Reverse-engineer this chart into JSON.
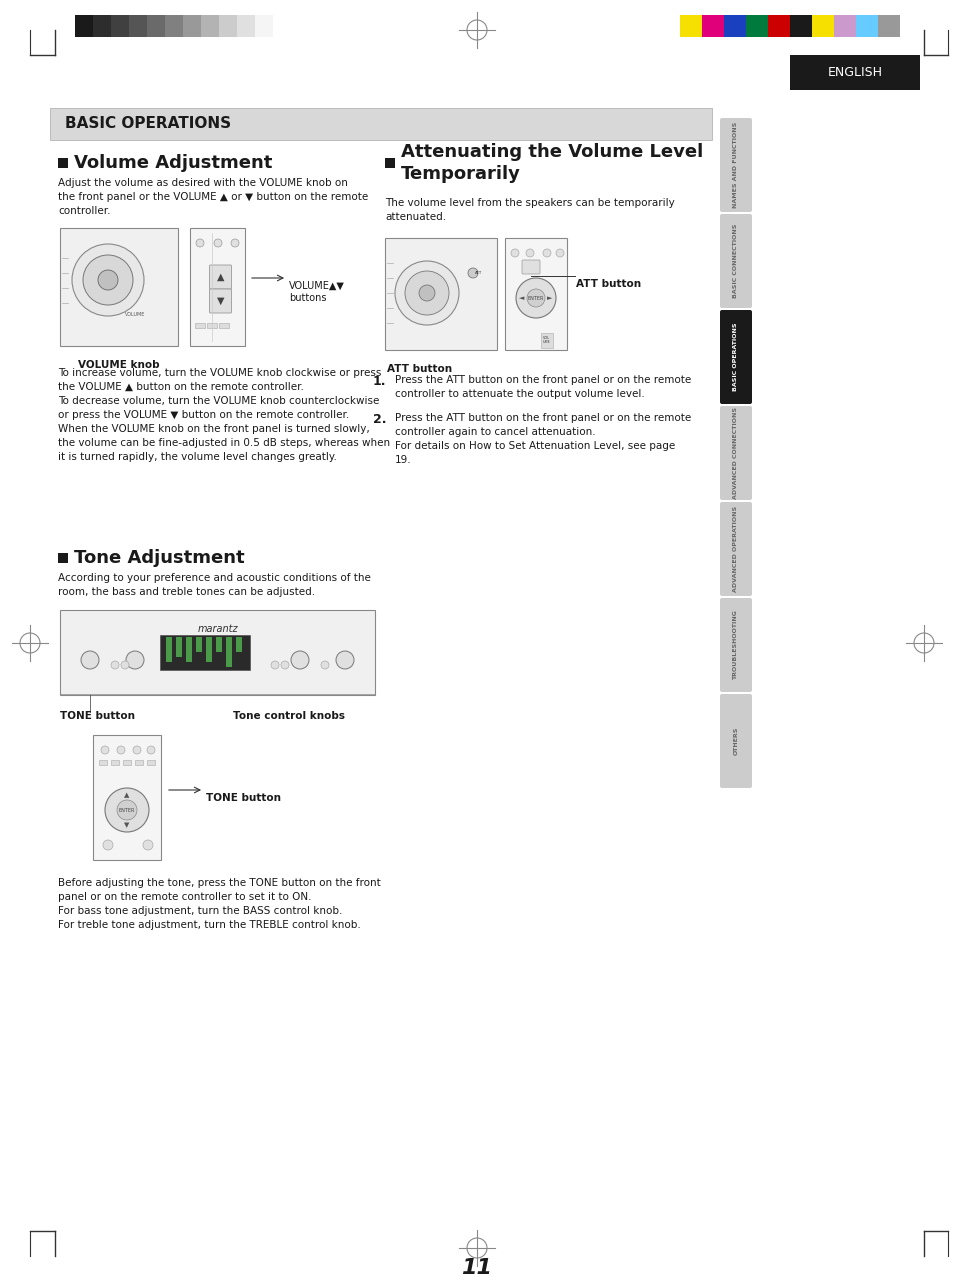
{
  "page_bg": "#ffffff",
  "header_bar_colors": [
    "#1a1a1a",
    "#2d2d2d",
    "#404040",
    "#555555",
    "#6a6a6a",
    "#808080",
    "#999999",
    "#b3b3b3",
    "#cccccc",
    "#e0e0e0",
    "#f5f5f5"
  ],
  "color_bar_colors": [
    "#f5e000",
    "#e0007a",
    "#1a3fbf",
    "#007a3d",
    "#cc0000",
    "#1a1a1a",
    "#f5e000",
    "#cc99cc",
    "#66ccff",
    "#999999"
  ],
  "tab_labels": [
    "NAMES AND FUNCTIONS",
    "BASIC CONNECTIONS",
    "BASIC OPERATIONS",
    "ADVANCED CONNECTIONS",
    "ADVANCED OPERATIONS",
    "TROUBLESHOOTING",
    "OTHERS"
  ],
  "active_tab_index": 2,
  "tab_bg_active": "#1a1a1a",
  "tab_bg_inactive": "#cccccc",
  "tab_text_active": "#ffffff",
  "tab_text_inactive": "#666666",
  "english_bg": "#1a1a1a",
  "english_text": "ENGLISH",
  "main_header": "BASIC OPERATIONS",
  "section1_title": "Volume Adjustment",
  "section2_title": "Attenuating the Volume Level\nTemporarily",
  "section2_intro": "The volume level from the speakers can be temporarily\nattenuated.",
  "section3_title": "Tone Adjustment",
  "section3_text": "According to your preference and acoustic conditions of the\nroom, the bass and treble tones can be adjusted.",
  "page_number": "11",
  "volume_label": "VOLUME knob",
  "volume_btn_label": "VOLUME▲▼\nbuttons",
  "att_btn_label1": "ATT button",
  "att_btn_label2": "ATT button",
  "tone_btn_label": "TONE button",
  "tone_ctrl_label": "Tone control knobs",
  "tone_btn_label2": "TONE button"
}
